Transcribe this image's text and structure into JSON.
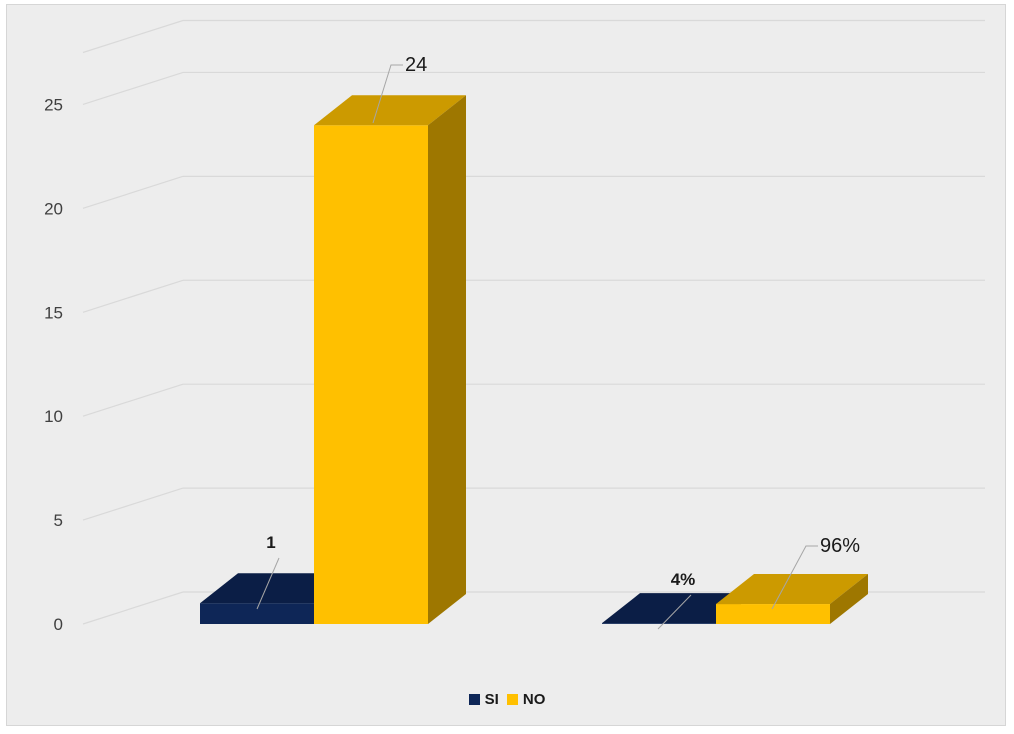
{
  "chart_data": {
    "type": "bar",
    "three_d": true,
    "y_ticks": [
      "0",
      "5",
      "10",
      "15",
      "20",
      "25"
    ],
    "ylim": [
      0,
      27
    ],
    "grid": true,
    "legend_position": "bottom",
    "series": [
      {
        "name": "SI",
        "color": "#0e2657",
        "values": [
          1,
          0.04
        ],
        "data_labels": [
          "1",
          "4%"
        ],
        "label_bold": true
      },
      {
        "name": "NO",
        "color": "#ffc000",
        "values": [
          24,
          0.96
        ],
        "data_labels": [
          "24",
          "96%"
        ],
        "label_bold": false
      }
    ]
  }
}
